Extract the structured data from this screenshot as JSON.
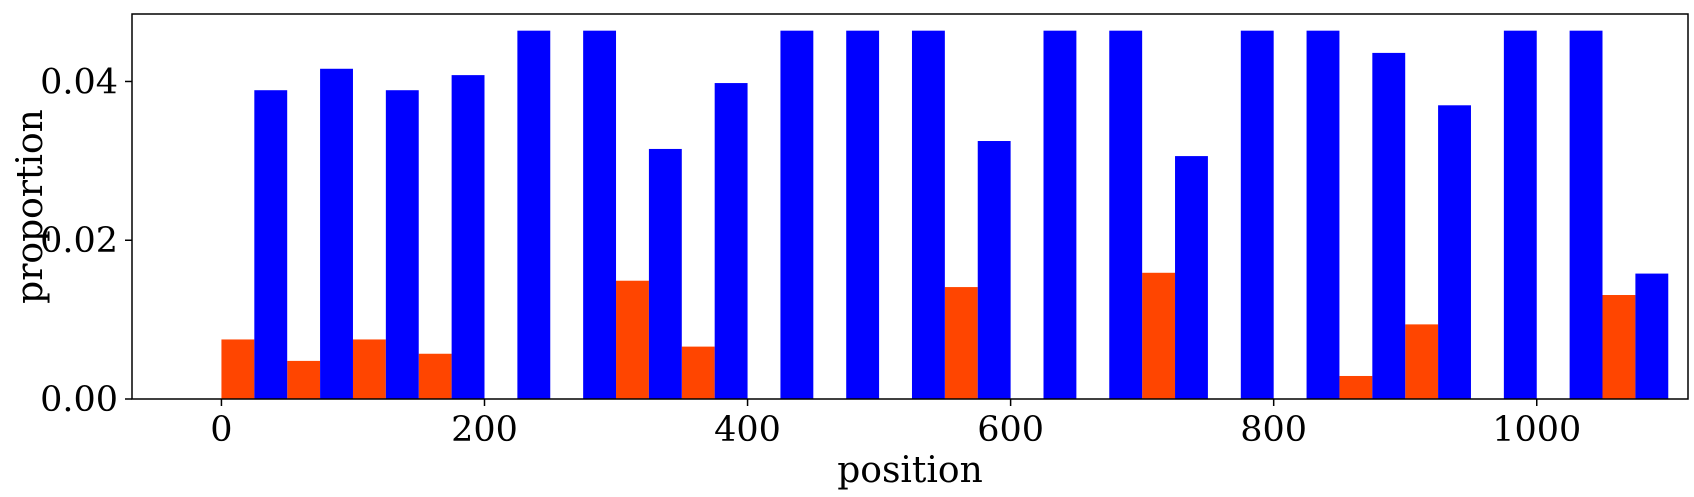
{
  "chart_data": {
    "type": "bar",
    "xlabel": "position",
    "ylabel": "proportion",
    "xlim": [
      -68,
      1115
    ],
    "ylim": [
      0,
      0.0485
    ],
    "bar_width": 25,
    "x": [
      0,
      50,
      100,
      150,
      200,
      250,
      300,
      350,
      400,
      450,
      500,
      550,
      600,
      650,
      700,
      750,
      800,
      850,
      900,
      950,
      1000,
      1050
    ],
    "series": [
      {
        "color": "#ff4500",
        "offset": 0,
        "values": [
          0.0075,
          0.0048,
          0.0075,
          0.0057,
          0,
          0,
          0.0149,
          0.0066,
          0,
          0,
          0,
          0.0141,
          0,
          0,
          0.0159,
          0,
          0,
          0.0029,
          0.0094,
          0,
          0,
          0.0131
        ]
      },
      {
        "color": "#0000ff",
        "offset": 25,
        "values": [
          0.0389,
          0.0416,
          0.0389,
          0.0408,
          0.0464,
          0.0464,
          0.0315,
          0.0398,
          0.0464,
          0.0464,
          0.0464,
          0.0325,
          0.0464,
          0.0464,
          0.0306,
          0.0464,
          0.0464,
          0.0436,
          0.037,
          0.0464,
          0.0464,
          0.0158
        ]
      }
    ],
    "xticks": [
      0,
      200,
      400,
      600,
      800,
      1000
    ],
    "xtick_labels": [
      "0",
      "200",
      "400",
      "600",
      "800",
      "1000"
    ],
    "yticks": [
      0,
      0.02,
      0.04
    ],
    "ytick_labels": [
      "0.00",
      "0.02",
      "0.04"
    ],
    "grid": false,
    "legend": "none"
  }
}
